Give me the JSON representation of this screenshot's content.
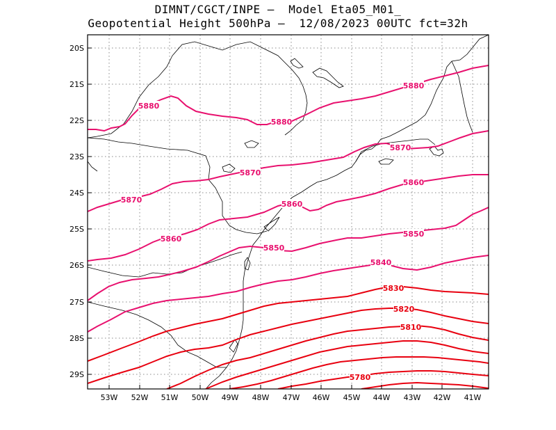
{
  "title": {
    "line1": "DIMNT/CGCT/INPE –  Model Eta05_M01_",
    "line2": "Geopotential Height 500hPa –  12/08/2023 00UTC fct=32h"
  },
  "axes": {
    "x_ticks": [
      "53W",
      "52W",
      "51W",
      "50W",
      "49W",
      "48W",
      "47W",
      "46W",
      "45W",
      "44W",
      "43W",
      "42W",
      "41W"
    ],
    "y_ticks": [
      "20S",
      "21S",
      "22S",
      "23S",
      "24S",
      "25S",
      "26S",
      "27S",
      "28S",
      "29S"
    ]
  },
  "colors": {
    "high": "#e8106e",
    "low": "#e8000f",
    "coast": "#000000",
    "grid": "#888888"
  },
  "contours": [
    {
      "level": 5880,
      "label": "5880"
    },
    {
      "level": 5870,
      "label": "5870"
    },
    {
      "level": 5860,
      "label": "5860"
    },
    {
      "level": 5850,
      "label": "5850"
    },
    {
      "level": 5840,
      "label": "5840"
    },
    {
      "level": 5830,
      "label": "5830"
    },
    {
      "level": 5820,
      "label": "5820"
    },
    {
      "level": 5810,
      "label": "5810"
    },
    {
      "level": 5800,
      "label": ""
    },
    {
      "level": 5790,
      "label": ""
    },
    {
      "level": 5780,
      "label": "5780"
    },
    {
      "level": 5770,
      "label": ""
    }
  ]
}
